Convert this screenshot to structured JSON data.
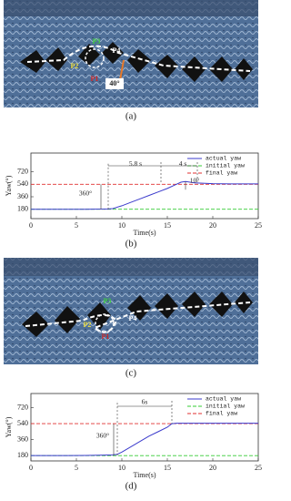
{
  "figure": {
    "panel_a": {
      "caption": "(a)",
      "labels": [
        "P1",
        "P2",
        "P3",
        "P4",
        "40°"
      ]
    },
    "panel_c": {
      "caption": "(c)",
      "labels": [
        "P1",
        "P2",
        "P3",
        "P4"
      ]
    }
  },
  "chart_data": [
    {
      "type": "line",
      "caption": "(b)",
      "xlabel": "Time(s)",
      "ylabel": "Yaw(°)",
      "x": [
        0,
        2,
        4,
        6,
        8,
        8.5,
        9,
        10,
        11,
        12,
        13,
        14,
        15,
        16,
        16.5,
        17,
        18,
        20,
        22,
        25
      ],
      "series": [
        {
          "name": "actual yaw",
          "color": "#3b3bcc",
          "values": [
            180,
            180,
            180,
            180,
            182,
            185,
            190,
            230,
            280,
            330,
            380,
            430,
            480,
            540,
            570,
            580,
            560,
            548,
            545,
            545
          ]
        }
      ],
      "reference_lines": [
        {
          "name": "initial yaw",
          "color": "#33cc33",
          "value": 180
        },
        {
          "name": "final yaw",
          "color": "#e03030",
          "value": 540
        }
      ],
      "annotations": [
        "5.8 s",
        "4 s",
        "360°",
        "10°"
      ],
      "xlim": [
        0,
        25
      ],
      "xticks": [
        0,
        5,
        10,
        15,
        20,
        25
      ],
      "ylim": [
        45,
        990
      ],
      "yticks": [
        180,
        360,
        540,
        720
      ]
    },
    {
      "type": "line",
      "caption": "(d)",
      "xlabel": "Time(s)",
      "ylabel": "Yaw(°)",
      "x": [
        0,
        2,
        4,
        6,
        8,
        9,
        9.5,
        10,
        11,
        12,
        13,
        14,
        15,
        15.5,
        16,
        18,
        20,
        22,
        25
      ],
      "series": [
        {
          "name": "actual yaw",
          "color": "#3b3bcc",
          "values": [
            180,
            180,
            180,
            182,
            185,
            188,
            195,
            220,
            280,
            340,
            400,
            450,
            500,
            540,
            545,
            545,
            545,
            545,
            545
          ]
        }
      ],
      "reference_lines": [
        {
          "name": "initial yaw",
          "color": "#33cc33",
          "value": 180
        },
        {
          "name": "final yaw",
          "color": "#e03030",
          "value": 540
        }
      ],
      "annotations": [
        "6s",
        "360°"
      ],
      "xlim": [
        0,
        25
      ],
      "xticks": [
        0,
        5,
        10,
        15,
        20,
        25
      ],
      "ylim": [
        120,
        880
      ],
      "yticks": [
        180,
        360,
        540,
        720
      ]
    }
  ]
}
